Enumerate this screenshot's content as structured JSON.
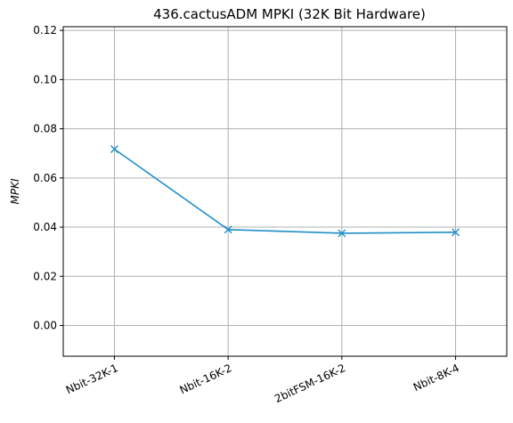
{
  "chart_data": {
    "type": "line",
    "title": "436.cactusADM MPKI (32K Bit Hardware)",
    "xlabel": "",
    "ylabel": "MPKI",
    "categories": [
      "Nbit-32K-1",
      "Nbit-16K-2",
      "2bitFSM-16K-2",
      "Nbit-8K-4"
    ],
    "series": [
      {
        "values": [
          0.0717,
          0.039,
          0.0375,
          0.0379
        ],
        "color": "#1f8fc8",
        "marker": "x"
      }
    ],
    "ylim": [
      -0.0125,
      0.1215
    ],
    "yticks": [
      0.0,
      0.02,
      0.04,
      0.06,
      0.08,
      0.1,
      0.12
    ],
    "ytick_labels": [
      "0.00",
      "0.02",
      "0.04",
      "0.06",
      "0.08",
      "0.10",
      "0.12"
    ],
    "grid": true,
    "legend": "none"
  }
}
